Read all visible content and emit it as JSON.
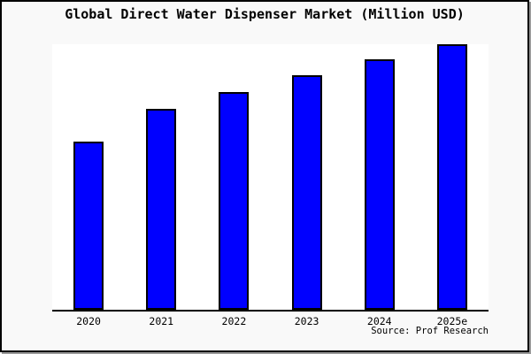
{
  "figure": {
    "background_color": "#f9f9f9",
    "plot_background_color": "#ffffff",
    "border_color": "#000000",
    "axis_color": "#000000"
  },
  "chart_data": {
    "type": "bar",
    "title": "Global Direct Water Dispenser Market (Million USD)",
    "categories": [
      "2020",
      "2021",
      "2022",
      "2023",
      "2024",
      "2025e"
    ],
    "values": [
      63.3,
      75.7,
      82.0,
      88.3,
      94.3,
      100
    ],
    "series_name": "Global Direct Water Dispenser Market",
    "xlabel": "",
    "ylabel": "",
    "ylim": [
      0,
      100
    ],
    "grid": false,
    "legend": false,
    "y_tick_labels_visible": false,
    "note": "No y-axis tick labels are shown in the image; values are relative bar heights expressed as percent of the tallest (2025e) bar.",
    "bar_color": "#0000ff",
    "bar_edge_color": "#000000",
    "source": "Source: Prof Research"
  }
}
